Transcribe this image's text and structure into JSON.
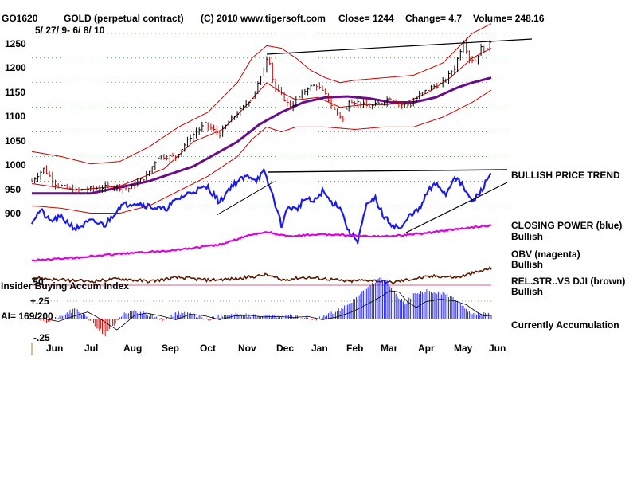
{
  "chart_data": [
    {
      "type": "ohlc",
      "symbol": "GO1620",
      "title": "GOLD (perpetual contract)",
      "copyright": "(C) 2010 www.tigersoft.com",
      "close_label": "Close= 1244",
      "change_label": "Change= 4.7",
      "volume_label": "Volume= 248.16",
      "date_range": "5/ 27/ 9- 6/ 8/ 10",
      "ylim": [
        870,
        1270
      ],
      "y_ticks": [
        "1250",
        "1200",
        "1150",
        "1100",
        "1050",
        "1000",
        "950",
        "900"
      ],
      "months": [
        "Jun",
        "Jul",
        "Aug",
        "Sep",
        "Oct",
        "Nov",
        "Dec",
        "Jan",
        "Feb",
        "Mar",
        "Apr",
        "May",
        "Jun"
      ],
      "price_anchors": [
        [
          0,
          950
        ],
        [
          8,
          975
        ],
        [
          16,
          945
        ],
        [
          28,
          930
        ],
        [
          42,
          935
        ],
        [
          56,
          940
        ],
        [
          66,
          935
        ],
        [
          78,
          960
        ],
        [
          86,
          1000
        ],
        [
          98,
          1000
        ],
        [
          108,
          1040
        ],
        [
          118,
          1065
        ],
        [
          128,
          1045
        ],
        [
          134,
          1070
        ],
        [
          144,
          1100
        ],
        [
          150,
          1120
        ],
        [
          156,
          1160
        ],
        [
          161,
          1210
        ],
        [
          165,
          1140
        ],
        [
          170,
          1125
        ],
        [
          176,
          1100
        ],
        [
          182,
          1120
        ],
        [
          188,
          1140
        ],
        [
          194,
          1145
        ],
        [
          200,
          1125
        ],
        [
          206,
          1095
        ],
        [
          212,
          1075
        ],
        [
          216,
          1115
        ],
        [
          222,
          1110
        ],
        [
          230,
          1100
        ],
        [
          238,
          1110
        ],
        [
          244,
          1120
        ],
        [
          252,
          1105
        ],
        [
          258,
          1105
        ],
        [
          264,
          1125
        ],
        [
          272,
          1140
        ],
        [
          280,
          1150
        ],
        [
          288,
          1180
        ],
        [
          294,
          1235
        ],
        [
          298,
          1200
        ],
        [
          302,
          1195
        ],
        [
          306,
          1220
        ],
        [
          310,
          1215
        ],
        [
          313,
          1244
        ]
      ],
      "overlays": [
        {
          "name": "upper band",
          "color": "#cc0000",
          "points": [
            [
              0,
              1010
            ],
            [
              20,
              1000
            ],
            [
              40,
              985
            ],
            [
              60,
              990
            ],
            [
              80,
              1020
            ],
            [
              100,
              1060
            ],
            [
              120,
              1090
            ],
            [
              140,
              1150
            ],
            [
              150,
              1200
            ],
            [
              160,
              1225
            ],
            [
              170,
              1220
            ],
            [
              180,
              1200
            ],
            [
              190,
              1175
            ],
            [
              200,
              1160
            ],
            [
              210,
              1150
            ],
            [
              220,
              1155
            ],
            [
              240,
              1160
            ],
            [
              260,
              1165
            ],
            [
              280,
              1190
            ],
            [
              300,
              1250
            ],
            [
              313,
              1270
            ]
          ]
        },
        {
          "name": "lower band",
          "color": "#cc0000",
          "points": [
            [
              0,
              900
            ],
            [
              20,
              895
            ],
            [
              40,
              885
            ],
            [
              60,
              885
            ],
            [
              80,
              900
            ],
            [
              100,
              930
            ],
            [
              120,
              960
            ],
            [
              140,
              1000
            ],
            [
              150,
              1035
            ],
            [
              160,
              1060
            ],
            [
              170,
              1050
            ],
            [
              180,
              1060
            ],
            [
              190,
              1060
            ],
            [
              200,
              1060
            ],
            [
              220,
              1055
            ],
            [
              240,
              1060
            ],
            [
              260,
              1060
            ],
            [
              280,
              1080
            ],
            [
              300,
              1110
            ],
            [
              313,
              1135
            ]
          ]
        },
        {
          "name": "short moving average",
          "color": "#cc0000",
          "points": [
            [
              0,
              945
            ],
            [
              30,
              932
            ],
            [
              60,
              940
            ],
            [
              90,
              975
            ],
            [
              110,
              1030
            ],
            [
              130,
              1055
            ],
            [
              145,
              1100
            ],
            [
              160,
              1150
            ],
            [
              170,
              1130
            ],
            [
              180,
              1115
            ],
            [
              195,
              1120
            ],
            [
              210,
              1100
            ],
            [
              225,
              1105
            ],
            [
              240,
              1105
            ],
            [
              255,
              1110
            ],
            [
              270,
              1130
            ],
            [
              285,
              1160
            ],
            [
              300,
              1200
            ],
            [
              313,
              1220
            ]
          ]
        },
        {
          "name": "long moving average",
          "color": "#6a0d8a",
          "points": [
            [
              0,
              925
            ],
            [
              40,
              925
            ],
            [
              80,
              950
            ],
            [
              110,
              980
            ],
            [
              140,
              1030
            ],
            [
              155,
              1065
            ],
            [
              170,
              1090
            ],
            [
              185,
              1110
            ],
            [
              200,
              1120
            ],
            [
              215,
              1122
            ],
            [
              230,
              1118
            ],
            [
              245,
              1110
            ],
            [
              260,
              1110
            ],
            [
              275,
              1120
            ],
            [
              290,
              1140
            ],
            [
              300,
              1150
            ],
            [
              313,
              1160
            ]
          ]
        }
      ],
      "trendline_label": "BULLISH PRICE TREND"
    },
    {
      "type": "line",
      "series": [
        {
          "name": "CLOSING POWER (blue)",
          "status": "Bullish",
          "color": "#1a1aee"
        },
        {
          "name": "OBV (magenta)",
          "status": "Bullish",
          "color": "#e000e0"
        },
        {
          "name": "REL.STR..VS DJI (brown)",
          "status": "Bullish",
          "color": "#5a1a00"
        }
      ],
      "closing_power_anchors": [
        [
          0,
          0.35
        ],
        [
          6,
          0.5
        ],
        [
          12,
          0.35
        ],
        [
          20,
          0.4
        ],
        [
          30,
          0.25
        ],
        [
          40,
          0.35
        ],
        [
          50,
          0.3
        ],
        [
          60,
          0.55
        ],
        [
          70,
          0.6
        ],
        [
          80,
          0.55
        ],
        [
          90,
          0.5
        ],
        [
          100,
          0.65
        ],
        [
          110,
          0.75
        ],
        [
          120,
          0.8
        ],
        [
          128,
          0.6
        ],
        [
          135,
          0.8
        ],
        [
          142,
          0.9
        ],
        [
          148,
          0.95
        ],
        [
          153,
          0.9
        ],
        [
          158,
          1.0
        ],
        [
          164,
          0.7
        ],
        [
          170,
          0.3
        ],
        [
          175,
          0.55
        ],
        [
          180,
          0.5
        ],
        [
          186,
          0.65
        ],
        [
          192,
          0.6
        ],
        [
          198,
          0.75
        ],
        [
          204,
          0.6
        ],
        [
          210,
          0.55
        ],
        [
          216,
          0.2
        ],
        [
          222,
          0.1
        ],
        [
          228,
          0.55
        ],
        [
          234,
          0.65
        ],
        [
          240,
          0.4
        ],
        [
          246,
          0.3
        ],
        [
          252,
          0.25
        ],
        [
          258,
          0.45
        ],
        [
          264,
          0.5
        ],
        [
          270,
          0.75
        ],
        [
          276,
          0.85
        ],
        [
          282,
          0.7
        ],
        [
          288,
          0.95
        ],
        [
          294,
          0.8
        ],
        [
          300,
          0.6
        ],
        [
          306,
          0.75
        ],
        [
          313,
          1.0
        ]
      ],
      "obv_anchors": [
        [
          0,
          0.05
        ],
        [
          30,
          0.08
        ],
        [
          60,
          0.12
        ],
        [
          90,
          0.15
        ],
        [
          110,
          0.18
        ],
        [
          130,
          0.22
        ],
        [
          145,
          0.3
        ],
        [
          160,
          0.35
        ],
        [
          175,
          0.3
        ],
        [
          190,
          0.32
        ],
        [
          210,
          0.32
        ],
        [
          230,
          0.3
        ],
        [
          250,
          0.31
        ],
        [
          270,
          0.34
        ],
        [
          290,
          0.38
        ],
        [
          313,
          0.42
        ]
      ],
      "relstr_anchors": [
        [
          0,
          0.6
        ],
        [
          20,
          0.5
        ],
        [
          40,
          0.45
        ],
        [
          60,
          0.55
        ],
        [
          80,
          0.45
        ],
        [
          100,
          0.6
        ],
        [
          120,
          0.5
        ],
        [
          140,
          0.55
        ],
        [
          160,
          0.7
        ],
        [
          170,
          0.5
        ],
        [
          185,
          0.6
        ],
        [
          200,
          0.55
        ],
        [
          215,
          0.45
        ],
        [
          230,
          0.5
        ],
        [
          245,
          0.4
        ],
        [
          260,
          0.55
        ],
        [
          275,
          0.65
        ],
        [
          290,
          0.6
        ],
        [
          300,
          0.75
        ],
        [
          313,
          0.95
        ]
      ]
    },
    {
      "type": "bar",
      "title": "Insider Buying Accum Index",
      "ai_label": "AI= 169/200",
      "status": "Currently Accumulation",
      "y_ticks": [
        ".50",
        "+.25",
        "-.25"
      ],
      "ylim": [
        -0.3,
        0.55
      ],
      "anchors": [
        [
          0,
          0.0
        ],
        [
          10,
          -0.05
        ],
        [
          20,
          0.04
        ],
        [
          30,
          0.12
        ],
        [
          35,
          0.05
        ],
        [
          40,
          -0.03
        ],
        [
          45,
          -0.12
        ],
        [
          50,
          -0.2
        ],
        [
          56,
          -0.08
        ],
        [
          62,
          0.06
        ],
        [
          70,
          0.1
        ],
        [
          80,
          0.05
        ],
        [
          90,
          -0.02
        ],
        [
          100,
          0.08
        ],
        [
          110,
          0.05
        ],
        [
          120,
          -0.02
        ],
        [
          130,
          0.05
        ],
        [
          140,
          0.06
        ],
        [
          150,
          0.03
        ],
        [
          160,
          0.04
        ],
        [
          170,
          0.02
        ],
        [
          180,
          0.04
        ],
        [
          190,
          -0.02
        ],
        [
          200,
          0.03
        ],
        [
          210,
          0.12
        ],
        [
          220,
          0.25
        ],
        [
          230,
          0.4
        ],
        [
          236,
          0.5
        ],
        [
          242,
          0.48
        ],
        [
          248,
          0.3
        ],
        [
          254,
          0.2
        ],
        [
          260,
          0.3
        ],
        [
          270,
          0.35
        ],
        [
          280,
          0.32
        ],
        [
          288,
          0.25
        ],
        [
          295,
          0.12
        ],
        [
          300,
          0.05
        ],
        [
          306,
          0.06
        ],
        [
          313,
          0.05
        ]
      ]
    }
  ]
}
